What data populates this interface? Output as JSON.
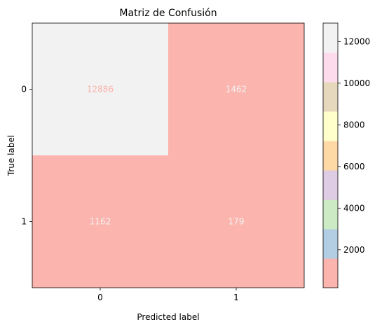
{
  "chart_data": {
    "type": "heatmap",
    "title": "Matriz de Confusión",
    "xlabel": "Predicted label",
    "ylabel": "True label",
    "x_categories": [
      "0",
      "1"
    ],
    "y_categories": [
      "0",
      "1"
    ],
    "values": [
      [
        12886,
        1462
      ],
      [
        1162,
        179
      ]
    ],
    "cell_labels": [
      [
        "12886",
        "1462"
      ],
      [
        "1162",
        "179"
      ]
    ],
    "colormap": [
      "#fbb4ae",
      "#b3cde3",
      "#ccebc5",
      "#decbe4",
      "#fed9a6",
      "#ffffcc",
      "#e5d8bd",
      "#fddaec",
      "#f2f2f2"
    ],
    "value_range": [
      179,
      12886
    ],
    "colorbar": {
      "ticks": [
        2000,
        4000,
        6000,
        8000,
        10000,
        12000
      ],
      "tick_labels": [
        "2000",
        "4000",
        "6000",
        "8000",
        "10000",
        "12000"
      ]
    },
    "annotation_colors": {
      "on_light": "#fbb4ae",
      "on_dark": "#f2f2f2"
    }
  }
}
